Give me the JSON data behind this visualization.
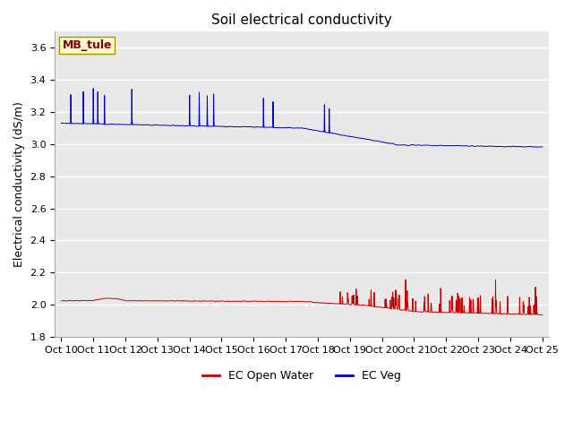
{
  "title": "Soil electrical conductivity",
  "ylabel": "Electrical conductivity (dS/m)",
  "ylim": [
    1.8,
    3.7
  ],
  "yticks": [
    1.8,
    2.0,
    2.2,
    2.4,
    2.6,
    2.8,
    3.0,
    3.2,
    3.4,
    3.6
  ],
  "xtick_labels": [
    "Oct 10",
    "Oct 11",
    "Oct 12",
    "Oct 13",
    "Oct 14",
    "Oct 15",
    "Oct 16",
    "Oct 17",
    "Oct 18",
    "Oct 19",
    "Oct 20",
    "Oct 21",
    "Oct 22",
    "Oct 23",
    "Oct 24",
    "Oct 25"
  ],
  "legend_labels": [
    "EC Open Water",
    "EC Veg"
  ],
  "annotation_text": "MB_tule",
  "annotation_color": "#8B0000",
  "annotation_bg": "#FFFACD",
  "annotation_edge": "#999900",
  "fig_bg": "#ffffff",
  "plot_bg": "#e8e8e8",
  "red_line_color": "#cc0000",
  "blue_line_color": "#0000cc",
  "grid_color": "#ffffff",
  "title_fontsize": 11,
  "label_fontsize": 9,
  "tick_fontsize": 8
}
